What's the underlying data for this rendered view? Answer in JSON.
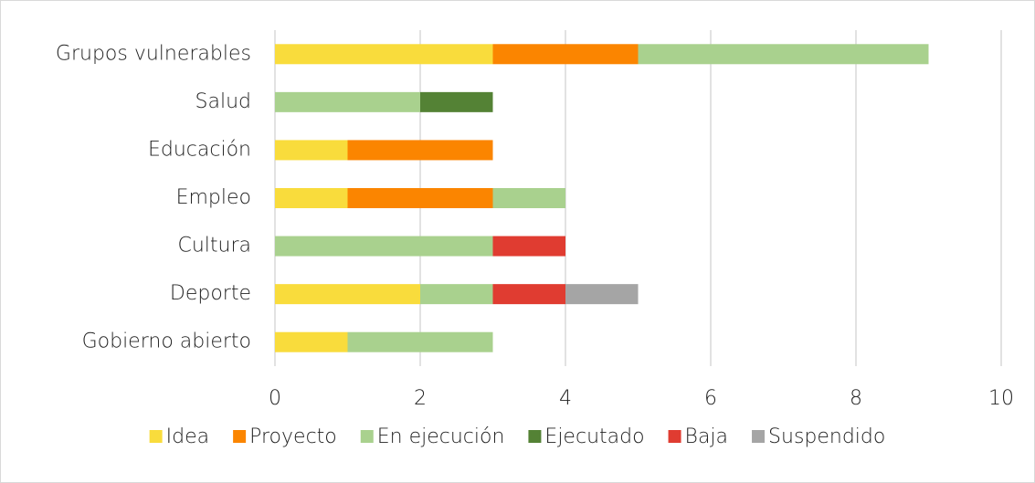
{
  "chart_data": {
    "type": "stacked_barh",
    "categories": [
      "Grupos vulnerables",
      "Salud",
      "Educación",
      "Empleo",
      "Cultura",
      "Deporte",
      "Gobierno abierto"
    ],
    "series": [
      {
        "name": "Idea",
        "color": "#f9dc3c",
        "values": [
          3,
          0,
          1,
          1,
          0,
          2,
          1
        ]
      },
      {
        "name": "Proyecto",
        "color": "#fb8500",
        "values": [
          2,
          0,
          2,
          2,
          0,
          0,
          0
        ]
      },
      {
        "name": "En ejecución",
        "color": "#a9d18e",
        "values": [
          4,
          2,
          0,
          1,
          3,
          1,
          2
        ]
      },
      {
        "name": "Ejecutado",
        "color": "#548235",
        "values": [
          0,
          1,
          0,
          0,
          0,
          0,
          0
        ]
      },
      {
        "name": "Baja",
        "color": "#e03c31",
        "values": [
          0,
          0,
          0,
          0,
          1,
          1,
          0
        ]
      },
      {
        "name": "Suspendido",
        "color": "#a5a5a5",
        "values": [
          0,
          0,
          0,
          0,
          0,
          1,
          0
        ]
      }
    ],
    "xlim": [
      0,
      10
    ],
    "xticks": [
      0,
      2,
      4,
      6,
      8,
      10
    ],
    "grid": true,
    "legend": "bottom"
  }
}
